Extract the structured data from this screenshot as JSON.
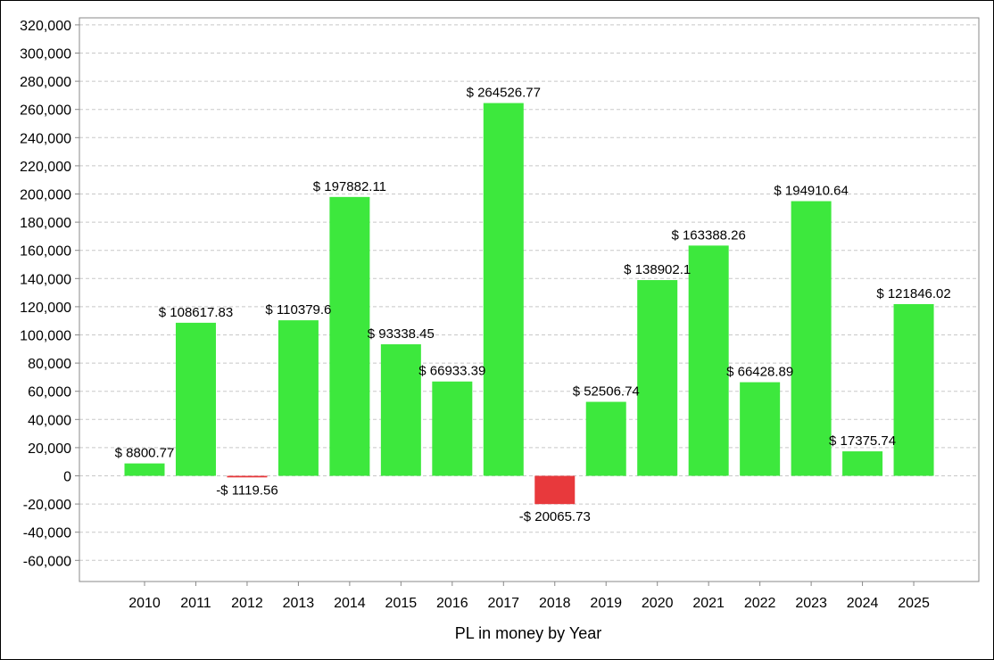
{
  "chart_data": {
    "type": "bar",
    "title": "",
    "xlabel": "PL in money by Year",
    "ylabel": "",
    "categories": [
      "2010",
      "2011",
      "2012",
      "2013",
      "2014",
      "2015",
      "2016",
      "2017",
      "2018",
      "2019",
      "2020",
      "2021",
      "2022",
      "2023",
      "2024",
      "2025"
    ],
    "values": [
      8800.77,
      108617.83,
      -1119.56,
      110379.6,
      197882.11,
      93338.45,
      66933.39,
      264526.77,
      -20065.73,
      52506.74,
      138902.1,
      163388.26,
      66428.89,
      194910.64,
      17375.74,
      121846.02
    ],
    "data_labels": [
      "$ 8800.77",
      "$ 108617.83",
      "-$ 1119.56",
      "$ 110379.6",
      "$ 197882.11",
      "$ 93338.45",
      "$ 66933.39",
      "$ 264526.77",
      "-$ 20065.73",
      "$ 52506.74",
      "$ 138902.1",
      "$ 163388.26",
      "$ 66428.89",
      "$ 194910.64",
      "$ 17375.74",
      "$ 121846.02"
    ],
    "ylim": [
      -75000,
      325000
    ],
    "yticks": [
      -60000,
      -40000,
      -20000,
      0,
      20000,
      40000,
      60000,
      80000,
      100000,
      120000,
      140000,
      160000,
      180000,
      200000,
      220000,
      240000,
      260000,
      280000,
      300000,
      320000
    ],
    "ytick_labels": [
      "-60,000",
      "-40,000",
      "-20,000",
      "0",
      "20,000",
      "40,000",
      "60,000",
      "80,000",
      "100,000",
      "120,000",
      "140,000",
      "160,000",
      "180,000",
      "200,000",
      "220,000",
      "240,000",
      "260,000",
      "280,000",
      "300,000",
      "320,000"
    ],
    "grid": true,
    "colors": {
      "positive": "#3de83d",
      "negative": "#e8393c",
      "grid": "#c8c8c8",
      "axis": "#888888"
    }
  }
}
